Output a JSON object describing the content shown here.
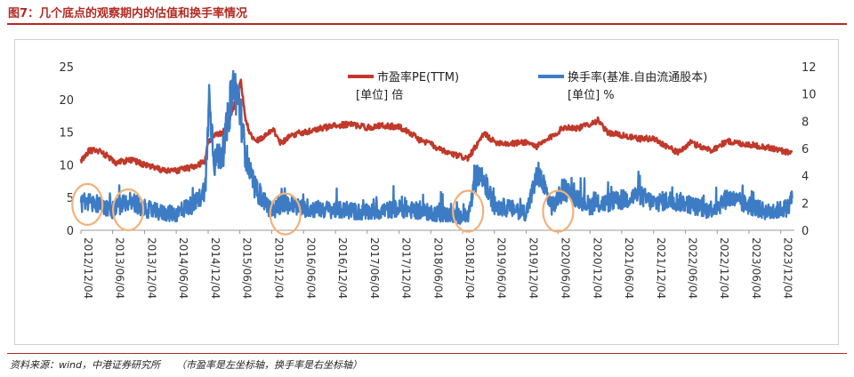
{
  "figure": {
    "title": "图7：几个底点的观察期内的估值和换手率情况",
    "source_label": "资料来源：wind，中港证券研究所",
    "source_note": "（市盈率是左坐标轴，换手率是右坐标轴）"
  },
  "chart_data": {
    "type": "line",
    "x_type": "date",
    "x_range": [
      "2012-12-04",
      "2024-02-20"
    ],
    "x_ticks": [
      "2012/12/04",
      "2013/06/04",
      "2013/12/04",
      "2014/06/04",
      "2014/12/04",
      "2015/06/04",
      "2015/12/04",
      "2016/06/04",
      "2016/12/04",
      "2017/06/04",
      "2017/12/04",
      "2018/06/04",
      "2018/12/04",
      "2019/06/04",
      "2019/12/04",
      "2020/06/04",
      "2020/12/04",
      "2021/06/04",
      "2021/12/04",
      "2022/06/04",
      "2022/12/04",
      "2023/06/04",
      "2023/12/04"
    ],
    "y_left": {
      "ticks": [
        0,
        5,
        10,
        15,
        20,
        25
      ],
      "ylim": [
        0,
        25
      ]
    },
    "y_right": {
      "ticks": [
        0,
        2,
        4,
        6,
        8,
        10,
        12
      ],
      "ylim": [
        0,
        12
      ]
    },
    "grid": false,
    "legend_position": "top",
    "series": [
      {
        "name": "市盈率PE(TTM)",
        "unit_label": "[单位] 倍",
        "axis": "left",
        "color": "#c0392b",
        "points": [
          [
            "2012-12-04",
            10.5
          ],
          [
            "2013-01-15",
            12.1
          ],
          [
            "2013-03-01",
            12.3
          ],
          [
            "2013-05-01",
            11.4
          ],
          [
            "2013-06-25",
            10.3
          ],
          [
            "2013-09-15",
            10.8
          ],
          [
            "2013-12-04",
            10.0
          ],
          [
            "2014-03-01",
            9.3
          ],
          [
            "2014-06-04",
            9.1
          ],
          [
            "2014-09-01",
            9.6
          ],
          [
            "2014-11-15",
            10.5
          ],
          [
            "2014-12-04",
            13.5
          ],
          [
            "2015-01-15",
            14.5
          ],
          [
            "2015-03-01",
            15.0
          ],
          [
            "2015-04-20",
            18.0
          ],
          [
            "2015-06-10",
            22.8
          ],
          [
            "2015-07-08",
            16.5
          ],
          [
            "2015-08-26",
            13.5
          ],
          [
            "2015-09-30",
            14.0
          ],
          [
            "2015-12-10",
            15.5
          ],
          [
            "2016-01-28",
            13.2
          ],
          [
            "2016-03-15",
            14.5
          ],
          [
            "2016-06-04",
            15.0
          ],
          [
            "2016-09-01",
            15.5
          ],
          [
            "2016-12-04",
            16.0
          ],
          [
            "2017-03-01",
            16.2
          ],
          [
            "2017-06-04",
            15.7
          ],
          [
            "2017-09-01",
            16.0
          ],
          [
            "2017-12-04",
            15.8
          ],
          [
            "2018-02-01",
            15.0
          ],
          [
            "2018-04-01",
            13.8
          ],
          [
            "2018-06-04",
            13.2
          ],
          [
            "2018-08-01",
            12.2
          ],
          [
            "2018-10-20",
            11.5
          ],
          [
            "2019-01-04",
            11.0
          ],
          [
            "2019-04-08",
            14.8
          ],
          [
            "2019-06-04",
            13.5
          ],
          [
            "2019-09-01",
            13.2
          ],
          [
            "2019-12-04",
            13.5
          ],
          [
            "2020-02-01",
            12.8
          ],
          [
            "2020-03-23",
            13.6
          ],
          [
            "2020-07-10",
            15.8
          ],
          [
            "2020-10-01",
            15.6
          ],
          [
            "2021-01-20",
            16.8
          ],
          [
            "2021-03-10",
            15.0
          ],
          [
            "2021-06-04",
            14.5
          ],
          [
            "2021-09-01",
            14.0
          ],
          [
            "2021-12-04",
            14.0
          ],
          [
            "2022-04-27",
            11.8
          ],
          [
            "2022-06-30",
            13.4
          ],
          [
            "2022-10-31",
            12.2
          ],
          [
            "2023-01-28",
            13.6
          ],
          [
            "2023-04-10",
            13.3
          ],
          [
            "2023-07-01",
            13.0
          ],
          [
            "2023-10-01",
            12.6
          ],
          [
            "2024-02-05",
            11.8
          ]
        ]
      },
      {
        "name": "换手率(基准.自由流通股本)",
        "unit_label": "[单位] %",
        "axis": "right",
        "color": "#3d7cc4",
        "points": [
          [
            "2012-12-04",
            2.0
          ],
          [
            "2013-01-10",
            2.1
          ],
          [
            "2013-03-01",
            2.0
          ],
          [
            "2013-06-04",
            1.5
          ],
          [
            "2013-09-10",
            2.2
          ],
          [
            "2013-12-04",
            1.6
          ],
          [
            "2014-03-01",
            1.3
          ],
          [
            "2014-06-04",
            1.2
          ],
          [
            "2014-08-01",
            1.7
          ],
          [
            "2014-10-01",
            2.0
          ],
          [
            "2014-11-20",
            3.2
          ],
          [
            "2014-12-09",
            9.8
          ],
          [
            "2015-01-10",
            5.0
          ],
          [
            "2015-03-01",
            5.8
          ],
          [
            "2015-04-25",
            10.5
          ],
          [
            "2015-05-28",
            9.8
          ],
          [
            "2015-07-01",
            6.0
          ],
          [
            "2015-08-20",
            3.2
          ],
          [
            "2015-10-01",
            2.5
          ],
          [
            "2015-12-04",
            1.4
          ],
          [
            "2016-02-01",
            2.0
          ],
          [
            "2016-06-04",
            1.6
          ],
          [
            "2016-12-04",
            1.5
          ],
          [
            "2017-06-04",
            1.3
          ],
          [
            "2017-12-04",
            1.6
          ],
          [
            "2018-06-04",
            1.3
          ],
          [
            "2018-10-01",
            1.1
          ],
          [
            "2019-01-04",
            1.0
          ],
          [
            "2019-03-01",
            4.3
          ],
          [
            "2019-04-10",
            3.5
          ],
          [
            "2019-06-04",
            1.8
          ],
          [
            "2019-09-01",
            1.6
          ],
          [
            "2019-12-04",
            1.3
          ],
          [
            "2020-02-10",
            4.2
          ],
          [
            "2020-05-01",
            1.7
          ],
          [
            "2020-07-10",
            3.0
          ],
          [
            "2020-12-04",
            1.8
          ],
          [
            "2021-03-01",
            2.0
          ],
          [
            "2021-06-04",
            2.2
          ],
          [
            "2021-09-10",
            2.6
          ],
          [
            "2021-12-04",
            2.0
          ],
          [
            "2022-03-01",
            2.2
          ],
          [
            "2022-06-04",
            2.0
          ],
          [
            "2022-10-01",
            1.5
          ],
          [
            "2022-12-04",
            1.7
          ],
          [
            "2023-02-01",
            2.4
          ],
          [
            "2023-06-04",
            1.8
          ],
          [
            "2023-10-01",
            1.3
          ],
          [
            "2024-01-20",
            1.7
          ],
          [
            "2024-02-08",
            2.7
          ]
        ]
      }
    ],
    "annotations": {
      "type": "circle",
      "color": "#f2b27a",
      "dates": [
        "2013-01-10",
        "2013-09-01",
        "2016-02-20",
        "2019-01-04",
        "2020-06-04"
      ],
      "right_axis_values": [
        1.9,
        1.5,
        1.2,
        1.4,
        1.4
      ]
    }
  }
}
